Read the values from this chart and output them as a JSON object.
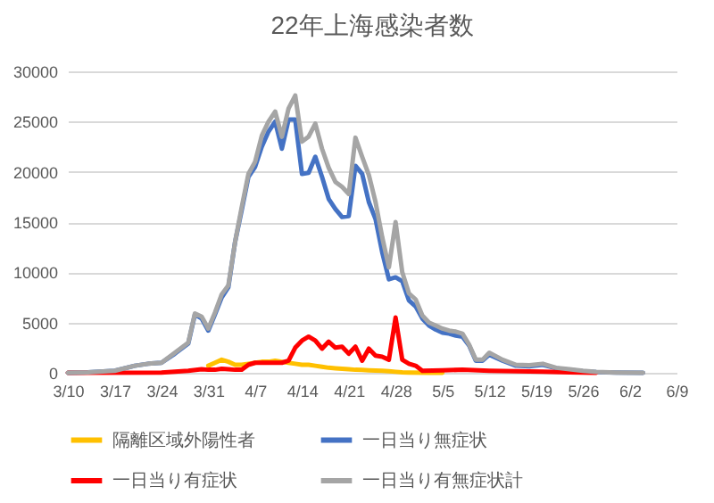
{
  "chart_data": {
    "type": "line",
    "title": "22年上海感染者数",
    "series": [
      {
        "name": "隔離区域外陽性者",
        "color": "#ffc000",
        "x": [
          "--03-31",
          "--04-01",
          "--04-02",
          "--04-03",
          "--04-04",
          "--04-05",
          "--04-06",
          "--04-07",
          "--04-08",
          "--04-09",
          "--04-10",
          "--04-11",
          "--04-12",
          "--04-13",
          "--04-14",
          "--04-15",
          "--04-16",
          "--04-17",
          "--04-18",
          "--04-19",
          "--04-20",
          "--04-21",
          "--04-22",
          "--04-23",
          "--04-24",
          "--04-25",
          "--04-26",
          "--04-27",
          "--04-28",
          "--04-29",
          "--04-30",
          "--05-03",
          "--05-05"
        ],
        "values": [
          700,
          1000,
          1300,
          1100,
          800,
          800,
          900,
          1000,
          1100,
          1100,
          1200,
          1100,
          1000,
          900,
          800,
          800,
          700,
          600,
          500,
          450,
          400,
          350,
          300,
          280,
          250,
          220,
          200,
          150,
          100,
          50,
          30,
          10,
          0
        ]
      },
      {
        "name": "一日当り無症状",
        "color": "#4472c4",
        "x": [
          "--03-10",
          "--03-13",
          "--03-17",
          "--03-20",
          "--03-22",
          "--03-24",
          "--03-26",
          "--03-28",
          "--03-29",
          "--03-30",
          "--03-31",
          "--04-01",
          "--04-02",
          "--04-03",
          "--04-04",
          "--04-05",
          "--04-06",
          "--04-07",
          "--04-08",
          "--04-09",
          "--04-10",
          "--04-11",
          "--04-12",
          "--04-13",
          "--04-14",
          "--04-15",
          "--04-16",
          "--04-17",
          "--04-18",
          "--04-19",
          "--04-20",
          "--04-21",
          "--04-22",
          "--04-23",
          "--04-24",
          "--04-25",
          "--04-26",
          "--04-27",
          "--04-28",
          "--04-29",
          "--04-30",
          "--05-01",
          "--05-02",
          "--05-03",
          "--05-04",
          "--05-05",
          "--05-06",
          "--05-07",
          "--05-08",
          "--05-09",
          "--05-10",
          "--05-11",
          "--05-12",
          "--05-14",
          "--05-16",
          "--05-18",
          "--05-20",
          "--05-22",
          "--05-24",
          "--05-26",
          "--05-28",
          "--05-31",
          "--06-04"
        ],
        "values": [
          0,
          50,
          200,
          700,
          900,
          1000,
          1900,
          2900,
          5800,
          5400,
          4200,
          5800,
          7500,
          8500,
          13000,
          16200,
          19500,
          20500,
          22500,
          24000,
          25000,
          22300,
          25200,
          25200,
          19800,
          19900,
          21500,
          19500,
          17300,
          16300,
          15500,
          15600,
          20600,
          19800,
          17000,
          15300,
          12000,
          9300,
          9500,
          9100,
          7200,
          6600,
          5400,
          4700,
          4300,
          4000,
          3900,
          3700,
          3600,
          2700,
          1200,
          1200,
          1800,
          1200,
          700,
          650,
          800,
          450,
          300,
          150,
          60,
          20,
          10
        ]
      },
      {
        "name": "一日当り有症状",
        "color": "#ff0000",
        "x": [
          "--03-10",
          "--03-24",
          "--03-28",
          "--03-30",
          "--03-31",
          "--04-01",
          "--04-02",
          "--04-03",
          "--04-04",
          "--04-05",
          "--04-06",
          "--04-07",
          "--04-08",
          "--04-09",
          "--04-10",
          "--04-11",
          "--04-12",
          "--04-13",
          "--04-14",
          "--04-15",
          "--04-16",
          "--04-17",
          "--04-18",
          "--04-19",
          "--04-20",
          "--04-21",
          "--04-22",
          "--04-23",
          "--04-24",
          "--04-25",
          "--04-26",
          "--04-27",
          "--04-28",
          "--04-29",
          "--04-30",
          "--05-01",
          "--05-02",
          "--05-05",
          "--05-08",
          "--05-12",
          "--05-16",
          "--05-20",
          "--05-24",
          "--05-28"
        ],
        "values": [
          0,
          30,
          200,
          350,
          300,
          300,
          400,
          350,
          300,
          300,
          800,
          1000,
          1000,
          1000,
          1000,
          1000,
          1200,
          2500,
          3200,
          3600,
          3200,
          2400,
          3100,
          2500,
          2600,
          1900,
          2600,
          1200,
          2400,
          1700,
          1600,
          1300,
          5500,
          1300,
          900,
          700,
          200,
          250,
          300,
          200,
          150,
          100,
          50,
          0
        ]
      },
      {
        "name": "一日当り有無症状計",
        "color": "#a5a5a5",
        "x": [
          "--03-10",
          "--03-13",
          "--03-17",
          "--03-20",
          "--03-22",
          "--03-24",
          "--03-26",
          "--03-28",
          "--03-29",
          "--03-30",
          "--03-31",
          "--04-01",
          "--04-02",
          "--04-03",
          "--04-04",
          "--04-05",
          "--04-06",
          "--04-07",
          "--04-08",
          "--04-09",
          "--04-10",
          "--04-11",
          "--04-12",
          "--04-13",
          "--04-14",
          "--04-15",
          "--04-16",
          "--04-17",
          "--04-18",
          "--04-19",
          "--04-20",
          "--04-21",
          "--04-22",
          "--04-23",
          "--04-24",
          "--04-25",
          "--04-26",
          "--04-27",
          "--04-28",
          "--04-29",
          "--04-30",
          "--05-01",
          "--05-02",
          "--05-03",
          "--05-04",
          "--05-05",
          "--05-06",
          "--05-07",
          "--05-08",
          "--05-09",
          "--05-10",
          "--05-11",
          "--05-12",
          "--05-14",
          "--05-16",
          "--05-18",
          "--05-20",
          "--05-22",
          "--05-24",
          "--05-26",
          "--05-28",
          "--05-31",
          "--06-04"
        ],
        "values": [
          0,
          50,
          200,
          700,
          900,
          1000,
          2000,
          3000,
          5900,
          5600,
          4400,
          6000,
          7800,
          8700,
          13000,
          16500,
          19800,
          21000,
          23600,
          25000,
          26000,
          23500,
          26300,
          27600,
          23000,
          23500,
          24800,
          22300,
          20400,
          19000,
          18500,
          17800,
          23400,
          21500,
          19700,
          17000,
          13500,
          10500,
          15000,
          10000,
          7900,
          7300,
          5700,
          5000,
          4700,
          4400,
          4200,
          4100,
          3900,
          2800,
          1300,
          1300,
          2000,
          1300,
          800,
          750,
          900,
          500,
          350,
          200,
          80,
          30,
          10
        ]
      }
    ],
    "xlim": [
      "--03-10",
      "--06-09"
    ],
    "xticks": [
      {
        "value": "--03-10",
        "label": "3/10"
      },
      {
        "value": "--03-17",
        "label": "3/17"
      },
      {
        "value": "--03-24",
        "label": "3/24"
      },
      {
        "value": "--03-31",
        "label": "3/31"
      },
      {
        "value": "--04-07",
        "label": "4/7"
      },
      {
        "value": "--04-14",
        "label": "4/14"
      },
      {
        "value": "--04-21",
        "label": "4/21"
      },
      {
        "value": "--04-28",
        "label": "4/28"
      },
      {
        "value": "--05-05",
        "label": "5/5"
      },
      {
        "value": "--05-12",
        "label": "5/12"
      },
      {
        "value": "--05-19",
        "label": "5/19"
      },
      {
        "value": "--05-26",
        "label": "5/26"
      },
      {
        "value": "--06-02",
        "label": "6/2"
      },
      {
        "value": "--06-09",
        "label": "6/9"
      }
    ],
    "ylim": [
      0,
      30000
    ],
    "yticks": [
      0,
      5000,
      10000,
      15000,
      20000,
      25000,
      30000
    ],
    "grid": "y",
    "legend": "bottom",
    "marker": "none",
    "line_style": "solid"
  }
}
